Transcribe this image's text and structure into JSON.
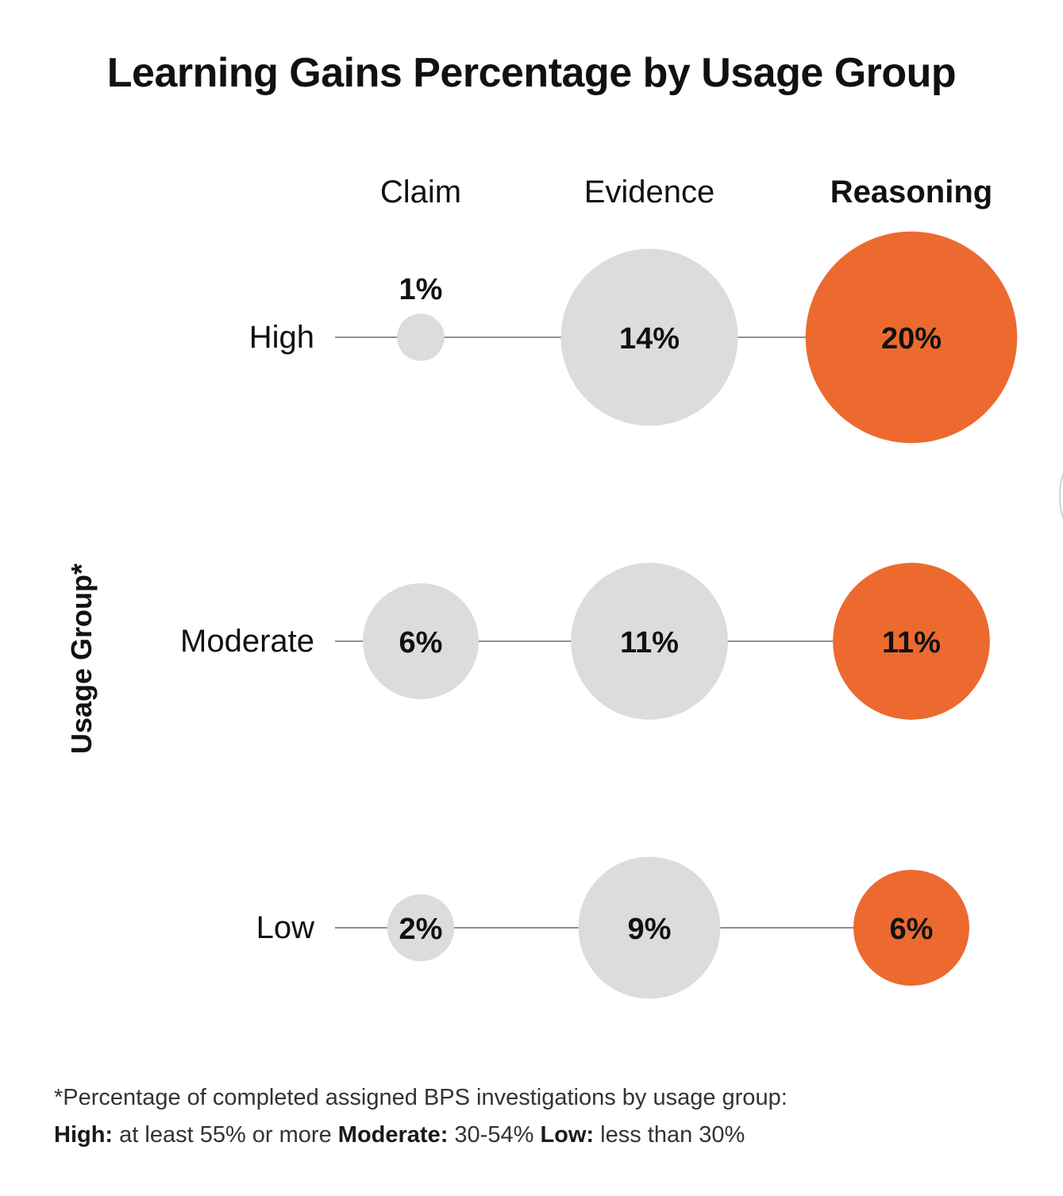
{
  "chart_data": {
    "type": "bubble",
    "title": "Learning Gains Percentage by Usage Group",
    "ylabel": "Usage Group*",
    "columns": [
      "Claim",
      "Evidence",
      "Reasoning"
    ],
    "highlight_column": "Reasoning",
    "rows": [
      {
        "group": "High",
        "values": [
          1,
          14,
          20
        ],
        "labels": [
          "1%",
          "14%",
          "20%"
        ]
      },
      {
        "group": "Moderate",
        "values": [
          6,
          11,
          11
        ],
        "labels": [
          "6%",
          "11%",
          "11%"
        ]
      },
      {
        "group": "Low",
        "values": [
          2,
          9,
          6
        ],
        "labels": [
          "2%",
          "9%",
          "6%"
        ]
      }
    ],
    "colors": {
      "default": "#dcdcdc",
      "highlight": "#ec6a2f",
      "line": "#6b6b6b"
    }
  },
  "footnote": {
    "intro": "*Percentage of completed assigned BPS investigations by usage group:",
    "high_label": "High:",
    "high_text": " at least 55% or more ",
    "moderate_label": "Moderate:",
    "moderate_text": " 30-54% ",
    "low_label": "Low:",
    "low_text": " less than 30%"
  }
}
